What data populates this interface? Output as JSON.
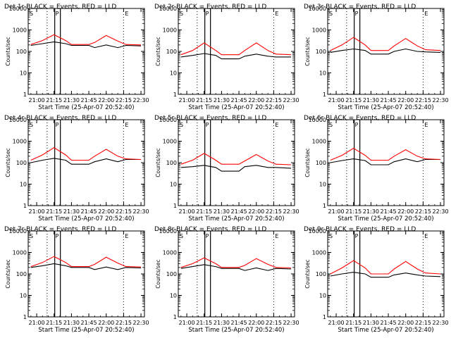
{
  "figure": {
    "background": "#ffffff",
    "event_color": "#000000",
    "lld_color": "#ff0000"
  },
  "chart_data": [
    {
      "type": "line",
      "title": "Det 1r BLACK = Events, RED = LLD",
      "ylabel": "Counts/sec",
      "xlabel": "Start Time (25-Apr-07 20:52:40)",
      "y_scale": "log",
      "ylim": [
        1,
        10000
      ],
      "ytick_labels": [
        "1",
        "10",
        "100",
        "1000",
        "10000"
      ],
      "xtick_labels": [
        "21:00",
        "21:15",
        "21:30",
        "21:45",
        "22:00",
        "22:15",
        "22:30"
      ],
      "legend": "none",
      "grid": false,
      "markers": {
        "S": "21:09",
        "P": "21:18",
        "E": "22:15"
      },
      "series": [
        {
          "name": "Events",
          "x": [
            "20:55",
            "21:05",
            "21:15",
            "21:25",
            "21:30",
            "21:45",
            "21:50",
            "22:00",
            "22:10",
            "22:17",
            "22:30"
          ],
          "values": [
            190,
            230,
            280,
            230,
            190,
            190,
            150,
            200,
            150,
            190,
            180
          ]
        },
        {
          "name": "LLD",
          "x": [
            "20:55",
            "21:05",
            "21:15",
            "21:25",
            "21:30",
            "21:45",
            "21:50",
            "22:00",
            "22:10",
            "22:17",
            "22:30"
          ],
          "values": [
            210,
            320,
            600,
            320,
            210,
            210,
            260,
            550,
            300,
            210,
            200
          ]
        }
      ]
    },
    {
      "type": "line",
      "title": "Det 2r BLACK = Events, RED = LLD",
      "ylabel": "Counts/sec",
      "xlabel": "Start Time (25-Apr-07 20:52:40)",
      "y_scale": "log",
      "ylim": [
        1,
        10000
      ],
      "ytick_labels": [
        "1",
        "10",
        "100",
        "1000",
        "10000"
      ],
      "xtick_labels": [
        "21:00",
        "21:15",
        "21:30",
        "21:45",
        "22:00",
        "22:15",
        "22:30"
      ],
      "legend": "none",
      "grid": false,
      "markers": {
        "S": "21:09",
        "P": "21:18",
        "E": "22:15"
      },
      "series": [
        {
          "name": "Events",
          "x": [
            "20:55",
            "21:05",
            "21:15",
            "21:25",
            "21:30",
            "21:45",
            "21:50",
            "22:00",
            "22:10",
            "22:17",
            "22:30"
          ],
          "values": [
            55,
            65,
            80,
            65,
            45,
            45,
            60,
            75,
            60,
            55,
            55
          ]
        },
        {
          "name": "LLD",
          "x": [
            "20:55",
            "21:05",
            "21:15",
            "21:25",
            "21:30",
            "21:45",
            "21:50",
            "22:00",
            "22:10",
            "22:17",
            "22:30"
          ],
          "values": [
            70,
            110,
            250,
            110,
            70,
            70,
            110,
            250,
            110,
            75,
            70
          ]
        }
      ]
    },
    {
      "type": "line",
      "title": "Det 3r BLACK = Events, RED = LLD",
      "ylabel": "Counts/sec",
      "xlabel": "Start Time (25-Apr-07 20:52:40)",
      "y_scale": "log",
      "ylim": [
        1,
        10000
      ],
      "ytick_labels": [
        "1",
        "10",
        "100",
        "1000",
        "10000"
      ],
      "xtick_labels": [
        "21:00",
        "21:15",
        "21:30",
        "21:45",
        "22:00",
        "22:15",
        "22:30"
      ],
      "legend": "none",
      "grid": false,
      "markers": {
        "S": "21:09",
        "P": "21:18",
        "E": "22:15"
      },
      "series": [
        {
          "name": "Events",
          "x": [
            "20:55",
            "21:05",
            "21:15",
            "21:25",
            "21:30",
            "21:45",
            "21:50",
            "22:00",
            "22:10",
            "22:17",
            "22:30"
          ],
          "values": [
            90,
            110,
            130,
            110,
            75,
            75,
            100,
            130,
            100,
            95,
            90
          ]
        },
        {
          "name": "LLD",
          "x": [
            "20:55",
            "21:05",
            "21:15",
            "21:25",
            "21:30",
            "21:45",
            "21:50",
            "22:00",
            "22:10",
            "22:17",
            "22:30"
          ],
          "values": [
            110,
            200,
            450,
            200,
            110,
            110,
            180,
            400,
            180,
            120,
            110
          ]
        }
      ]
    },
    {
      "type": "line",
      "title": "Det 4r BLACK = Events, RED = LLD",
      "ylabel": "Counts/sec",
      "xlabel": "Start Time (25-Apr-07 20:52:40)",
      "y_scale": "log",
      "ylim": [
        1,
        10000
      ],
      "ytick_labels": [
        "1",
        "10",
        "100",
        "1000",
        "10000"
      ],
      "xtick_labels": [
        "21:00",
        "21:15",
        "21:30",
        "21:45",
        "22:00",
        "22:15",
        "22:30"
      ],
      "legend": "none",
      "grid": false,
      "markers": {
        "S": "21:09",
        "P": "21:18",
        "E": "22:15"
      },
      "series": [
        {
          "name": "Events",
          "x": [
            "20:55",
            "21:05",
            "21:15",
            "21:25",
            "21:30",
            "21:45",
            "21:50",
            "22:00",
            "22:10",
            "22:17",
            "22:30"
          ],
          "values": [
            100,
            130,
            160,
            130,
            85,
            85,
            110,
            150,
            110,
            140,
            140
          ]
        },
        {
          "name": "LLD",
          "x": [
            "20:55",
            "21:05",
            "21:15",
            "21:25",
            "21:30",
            "21:45",
            "21:50",
            "22:00",
            "22:10",
            "22:17",
            "22:30"
          ],
          "values": [
            130,
            230,
            500,
            230,
            130,
            130,
            200,
            420,
            200,
            150,
            140
          ]
        }
      ]
    },
    {
      "type": "line",
      "title": "Det 5r BLACK = Events, RED = LLD",
      "ylabel": "Counts/sec",
      "xlabel": "Start Time (25-Apr-07 20:52:40)",
      "y_scale": "log",
      "ylim": [
        1,
        10000
      ],
      "ytick_labels": [
        "1",
        "10",
        "100",
        "1000",
        "10000"
      ],
      "xtick_labels": [
        "21:00",
        "21:15",
        "21:30",
        "21:45",
        "22:00",
        "22:15",
        "22:30"
      ],
      "legend": "none",
      "grid": false,
      "markers": {
        "S": "21:09",
        "P": "21:18",
        "E": "22:15"
      },
      "series": [
        {
          "name": "Events",
          "x": [
            "20:55",
            "21:05",
            "21:15",
            "21:25",
            "21:30",
            "21:45",
            "21:50",
            "22:00",
            "22:10",
            "22:17",
            "22:30"
          ],
          "values": [
            60,
            65,
            75,
            60,
            40,
            40,
            65,
            75,
            60,
            60,
            55
          ]
        },
        {
          "name": "LLD",
          "x": [
            "20:55",
            "21:05",
            "21:15",
            "21:25",
            "21:30",
            "21:45",
            "21:50",
            "22:00",
            "22:10",
            "22:17",
            "22:30"
          ],
          "values": [
            85,
            130,
            270,
            130,
            85,
            85,
            120,
            240,
            120,
            85,
            80
          ]
        }
      ]
    },
    {
      "type": "line",
      "title": "Det 6r BLACK = Events, RED = LLD",
      "ylabel": "Counts/sec",
      "xlabel": "Start Time (25-Apr-07 20:52:40)",
      "y_scale": "log",
      "ylim": [
        1,
        10000
      ],
      "ytick_labels": [
        "1",
        "10",
        "100",
        "1000",
        "10000"
      ],
      "xtick_labels": [
        "21:00",
        "21:15",
        "21:30",
        "21:45",
        "22:00",
        "22:15",
        "22:30"
      ],
      "legend": "none",
      "grid": false,
      "markers": {
        "S": "21:09",
        "P": "21:18",
        "E": "22:15"
      },
      "series": [
        {
          "name": "Events",
          "x": [
            "20:55",
            "21:05",
            "21:15",
            "21:25",
            "21:30",
            "21:45",
            "21:50",
            "22:00",
            "22:10",
            "22:17",
            "22:30"
          ],
          "values": [
            100,
            125,
            150,
            125,
            80,
            80,
            110,
            150,
            110,
            140,
            140
          ]
        },
        {
          "name": "LLD",
          "x": [
            "20:55",
            "21:05",
            "21:15",
            "21:25",
            "21:30",
            "21:45",
            "21:50",
            "22:00",
            "22:10",
            "22:17",
            "22:30"
          ],
          "values": [
            130,
            220,
            470,
            220,
            130,
            130,
            200,
            400,
            200,
            150,
            140
          ]
        }
      ]
    },
    {
      "type": "line",
      "title": "Det 7r BLACK = Events, RED = LLD",
      "ylabel": "Counts/sec",
      "xlabel": "Start Time (25-Apr-07 20:52:40)",
      "y_scale": "log",
      "ylim": [
        1,
        10000
      ],
      "ytick_labels": [
        "1",
        "10",
        "100",
        "1000",
        "10000"
      ],
      "xtick_labels": [
        "21:00",
        "21:15",
        "21:30",
        "21:45",
        "22:00",
        "22:15",
        "22:30"
      ],
      "legend": "none",
      "grid": false,
      "markers": {
        "S": "21:09",
        "P": "21:18",
        "E": "22:15"
      },
      "series": [
        {
          "name": "Events",
          "x": [
            "20:55",
            "21:05",
            "21:15",
            "21:25",
            "21:30",
            "21:45",
            "21:50",
            "22:00",
            "22:10",
            "22:17",
            "22:30"
          ],
          "values": [
            200,
            240,
            300,
            240,
            200,
            200,
            160,
            210,
            160,
            200,
            190
          ]
        },
        {
          "name": "LLD",
          "x": [
            "20:55",
            "21:05",
            "21:15",
            "21:25",
            "21:30",
            "21:45",
            "21:50",
            "22:00",
            "22:10",
            "22:17",
            "22:30"
          ],
          "values": [
            220,
            340,
            650,
            340,
            220,
            220,
            280,
            600,
            320,
            220,
            210
          ]
        }
      ]
    },
    {
      "type": "line",
      "title": "Det 8r BLACK = Events, RED = LLD",
      "ylabel": "Counts/sec",
      "xlabel": "Start Time (25-Apr-07 20:52:40)",
      "y_scale": "log",
      "ylim": [
        1,
        10000
      ],
      "ytick_labels": [
        "1",
        "10",
        "100",
        "1000",
        "10000"
      ],
      "xtick_labels": [
        "21:00",
        "21:15",
        "21:30",
        "21:45",
        "22:00",
        "22:15",
        "22:30"
      ],
      "legend": "none",
      "grid": false,
      "markers": {
        "S": "21:09",
        "P": "21:18",
        "E": "22:15"
      },
      "series": [
        {
          "name": "Events",
          "x": [
            "20:55",
            "21:05",
            "21:15",
            "21:25",
            "21:30",
            "21:45",
            "21:50",
            "22:00",
            "22:10",
            "22:17",
            "22:30"
          ],
          "values": [
            180,
            220,
            270,
            220,
            180,
            180,
            145,
            190,
            145,
            180,
            170
          ]
        },
        {
          "name": "LLD",
          "x": [
            "20:55",
            "21:05",
            "21:15",
            "21:25",
            "21:30",
            "21:45",
            "21:50",
            "22:00",
            "22:10",
            "22:17",
            "22:30"
          ],
          "values": [
            200,
            300,
            560,
            300,
            200,
            200,
            250,
            520,
            280,
            200,
            190
          ]
        }
      ]
    },
    {
      "type": "line",
      "title": "Det 9r BLACK = Events, RED = LLD",
      "ylabel": "Counts/sec",
      "xlabel": "Start Time (25-Apr-07 20:52:40)",
      "y_scale": "log",
      "ylim": [
        1,
        10000
      ],
      "ytick_labels": [
        "1",
        "10",
        "100",
        "1000",
        "10000"
      ],
      "xtick_labels": [
        "21:00",
        "21:15",
        "21:30",
        "21:45",
        "22:00",
        "22:15",
        "22:30"
      ],
      "legend": "none",
      "grid": false,
      "markers": {
        "S": "21:09",
        "P": "21:18",
        "E": "22:15"
      },
      "series": [
        {
          "name": "Events",
          "x": [
            "20:55",
            "21:05",
            "21:15",
            "21:25",
            "21:30",
            "21:45",
            "21:50",
            "22:00",
            "22:10",
            "22:17",
            "22:30"
          ],
          "values": [
            80,
            100,
            120,
            100,
            70,
            70,
            90,
            110,
            90,
            80,
            75
          ]
        },
        {
          "name": "LLD",
          "x": [
            "20:55",
            "21:05",
            "21:15",
            "21:25",
            "21:30",
            "21:45",
            "21:50",
            "22:00",
            "22:10",
            "22:17",
            "22:30"
          ],
          "values": [
            100,
            190,
            420,
            190,
            100,
            100,
            170,
            380,
            170,
            110,
            100
          ]
        }
      ]
    }
  ]
}
